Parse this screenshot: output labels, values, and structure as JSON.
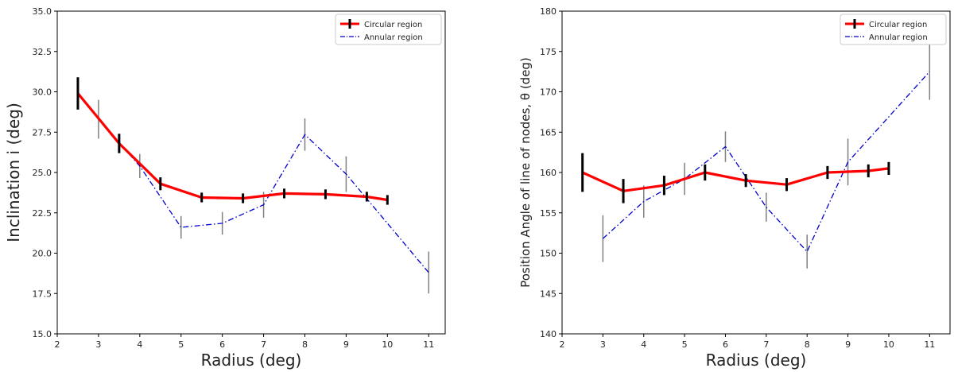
{
  "chart_data": [
    {
      "type": "line",
      "xlabel": "Radius (deg)",
      "ylabel": "Inclination i (deg)",
      "xlim": [
        2,
        11.4
      ],
      "ylim": [
        15.0,
        35.0
      ],
      "xticks": [
        2,
        3,
        4,
        5,
        6,
        7,
        8,
        9,
        10,
        11
      ],
      "yticks": [
        15.0,
        17.5,
        20.0,
        22.5,
        25.0,
        27.5,
        30.0,
        32.5,
        35.0
      ],
      "ytick_labels": [
        "15.0",
        "17.5",
        "20.0",
        "22.5",
        "25.0",
        "27.5",
        "30.0",
        "32.5",
        "35.0"
      ],
      "legend": "top-right",
      "series": [
        {
          "name": "Circular region",
          "color": "#ff0000",
          "errcolor": "#000000",
          "style": "solid",
          "x": [
            2.5,
            3.5,
            4.5,
            5.5,
            6.5,
            7.5,
            8.5,
            9.5,
            10
          ],
          "y": [
            29.9,
            26.8,
            24.3,
            23.45,
            23.4,
            23.7,
            23.65,
            23.5,
            23.3
          ],
          "err": [
            1.0,
            0.6,
            0.4,
            0.3,
            0.3,
            0.3,
            0.3,
            0.3,
            0.3
          ]
        },
        {
          "name": "Annular region",
          "color": "#0000cc",
          "errcolor": "#808080",
          "style": "dashdot",
          "x": [
            3,
            4,
            5,
            6,
            7,
            8,
            9,
            11
          ],
          "y": [
            28.3,
            25.4,
            21.6,
            21.85,
            23.0,
            27.35,
            24.9,
            18.8
          ],
          "err": [
            1.2,
            0.75,
            0.7,
            0.7,
            0.8,
            1.0,
            1.1,
            1.3
          ]
        }
      ]
    },
    {
      "type": "line",
      "xlabel": "Radius (deg)",
      "ylabel": "Position Angle of line of nodes, θ (deg)",
      "xlim": [
        2,
        11.5
      ],
      "ylim": [
        140,
        180
      ],
      "xticks": [
        2,
        3,
        4,
        5,
        6,
        7,
        8,
        9,
        10,
        11
      ],
      "yticks": [
        140,
        145,
        150,
        155,
        160,
        165,
        170,
        175,
        180
      ],
      "ytick_labels": [
        "140",
        "145",
        "150",
        "155",
        "160",
        "165",
        "170",
        "175",
        "180"
      ],
      "legend": "top-right",
      "series": [
        {
          "name": "Circular region",
          "color": "#ff0000",
          "errcolor": "#000000",
          "style": "solid",
          "x": [
            2.5,
            3.5,
            4.5,
            5.5,
            6.5,
            7.5,
            8.5,
            9.5,
            10
          ],
          "y": [
            160.0,
            157.7,
            158.4,
            160.0,
            159.0,
            158.5,
            160.0,
            160.2,
            160.5
          ],
          "err": [
            2.4,
            1.5,
            1.2,
            1.0,
            0.8,
            0.8,
            0.8,
            0.8,
            0.8
          ]
        },
        {
          "name": "Annular region",
          "color": "#0000cc",
          "errcolor": "#808080",
          "style": "dashdot",
          "x": [
            3,
            4,
            5,
            6,
            7,
            8,
            9,
            11
          ],
          "y": [
            151.8,
            156.4,
            159.2,
            163.2,
            155.7,
            150.2,
            161.3,
            172.5
          ],
          "err": [
            2.9,
            2.0,
            2.0,
            1.9,
            1.8,
            2.1,
            2.9,
            3.5
          ]
        }
      ]
    }
  ]
}
